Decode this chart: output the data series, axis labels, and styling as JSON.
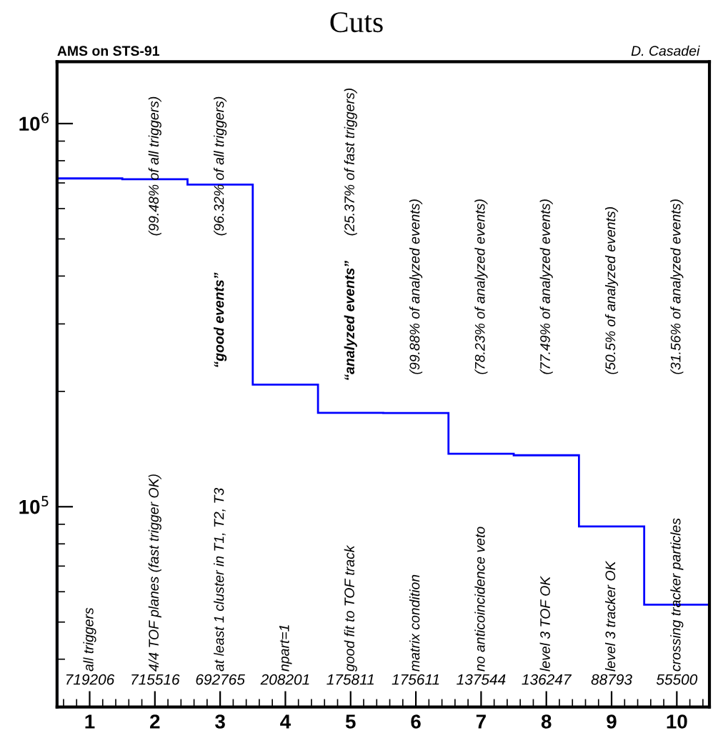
{
  "chart_data": {
    "type": "histogram",
    "title": "Cuts",
    "bins": [
      0.5,
      1.5,
      2.5,
      3.5,
      4.5,
      5.5,
      6.5,
      7.5,
      8.5,
      9.5,
      10.5
    ],
    "values": [
      719206,
      715516,
      692765,
      208201,
      175811,
      175611,
      137544,
      136247,
      88793,
      55500
    ],
    "color": "#0000ff",
    "log": "y",
    "xlim": [
      0.5,
      10.5
    ],
    "xticks": [
      1,
      2,
      3,
      4,
      5,
      6,
      7,
      8,
      9,
      10
    ],
    "ylim": [
      30000,
      1450000
    ],
    "yticks": [
      {
        "value": 100000,
        "label": "10$^{5}$"
      },
      {
        "value": 1000000,
        "label": "10$^{6}$"
      }
    ],
    "annotations": [
      "AMS on STS-91",
      "D. Casadei",
      "all triggers",
      "4/4 TOF planes (fast trigger OK)",
      "(99.48% of all triggers)",
      "at least 1 cluster in T1, T2, T3",
      "“good events”",
      "(96.32% of all triggers)",
      "npart=1",
      "good fit to TOF track",
      "“analyzed events”",
      "(25.37% of fast triggers)",
      "matrix condition",
      "(99.88% of analyzed events)",
      "no anticoincidence veto",
      "(78.23% of analyzed events)",
      "level 3 TOF OK",
      "(77.49% of analyzed events)",
      "level 3 tracker OK",
      "(50.5% of analyzed events)",
      "crossing tracker particles",
      "(31.56% of analyzed events)",
      "719206",
      "715516",
      "692765",
      "208201",
      "175811",
      "175611",
      "137544",
      "136247",
      "88793",
      "55500"
    ]
  }
}
